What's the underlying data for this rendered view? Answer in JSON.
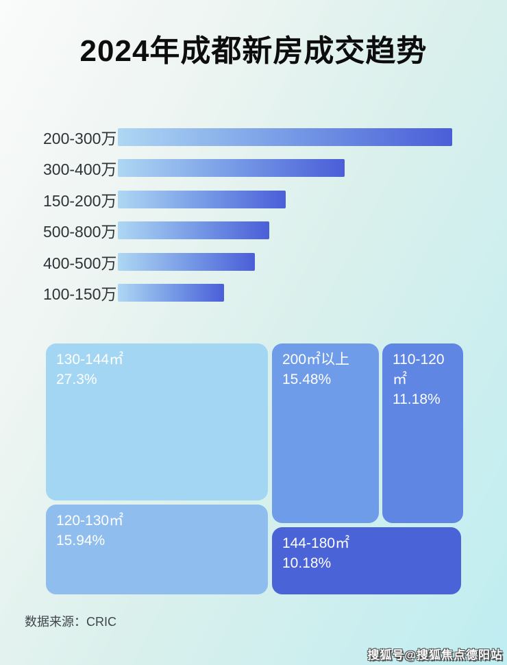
{
  "page": {
    "title": "2024年成都新房成交趋势",
    "source_label": "数据来源：CRIC",
    "watermark": "搜狐号@搜狐焦点德阳站"
  },
  "chart_data": [
    {
      "type": "bar",
      "orientation": "horizontal",
      "title": "成交总价段分布（按成交量排序，无数值标注）",
      "categories": [
        "200-300万",
        "300-400万",
        "150-200万",
        "500-800万",
        "400-500万",
        "100-150万"
      ],
      "values": [
        100,
        67.8,
        50.2,
        45.3,
        41.0,
        31.8
      ],
      "value_note": "relative bar lengths in % of longest bar; no axis or data labels shown in image",
      "xlabel": "",
      "ylabel": "",
      "grid": false,
      "legend": false,
      "bar_gradient": [
        "#aed7f3",
        "#4a5ed8"
      ]
    },
    {
      "type": "treemap",
      "title": "成交面积段占比",
      "items": [
        {
          "label": "130-144㎡",
          "value": 27.3,
          "value_label": "27.3%",
          "color": "#a3d6f3"
        },
        {
          "label": "200㎡以上",
          "value": 15.48,
          "value_label": "15.48%",
          "color": "#6f9ce8"
        },
        {
          "label": "110-120㎡",
          "value": 11.18,
          "value_label": "11.18%",
          "color": "#5e86e2"
        },
        {
          "label": "120-130㎡",
          "value": 15.94,
          "value_label": "15.94%",
          "color": "#8fbeee"
        },
        {
          "label": "144-180㎡",
          "value": 10.18,
          "value_label": "10.18%",
          "color": "#4a63d7"
        }
      ],
      "text_color": "#ffffff"
    }
  ]
}
